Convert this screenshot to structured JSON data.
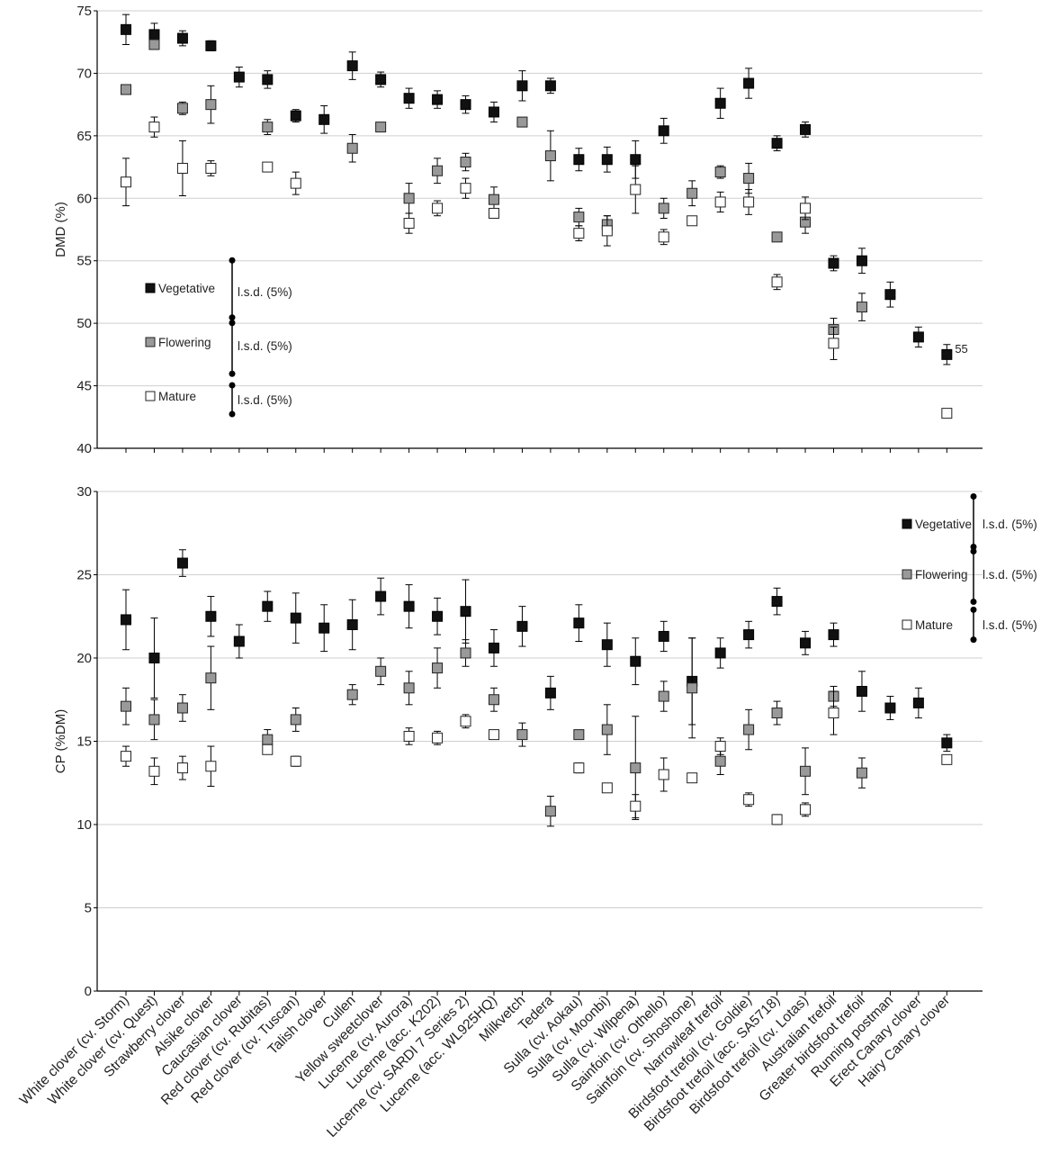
{
  "chart_data": {
    "type": "scatter",
    "categories": [
      "White clover (cv. Storm)",
      "White clover (cv. Quest)",
      "Strawberry clover",
      "Alsike clover",
      "Caucasian clover",
      "Red clover (cv. Rubitas)",
      "Red clover (cv. Tuscan)",
      "Talish clover",
      "Cullen",
      "Yellow sweetclover",
      "Lucerne (cv. Aurora)",
      "Lucerne (acc. K202)",
      "Lucerne (cv. SARDI 7 Series 2)",
      "Lucerne (acc. WL925HQ)",
      "Milkvetch",
      "Tedera",
      "Sulla (cv. Aokau)",
      "Sulla (cv. Moonbi)",
      "Sulla (cv. Wilpena)",
      "Sainfoin (cv. Othello)",
      "Sainfoin (cv. Shoshone)",
      "Narrowleaf trefoil",
      "Birdsfoot trefoil (cv. Goldie)",
      "Birdsfoot trefoil (acc. SA5718)",
      "Birdsfoot trefoil (cv. Lotas)",
      "Australian trefoil",
      "Greater birdsfoot trefoil",
      "Running postman",
      "Erect Canary clover",
      "Hairy Canary clover"
    ],
    "series_colors": {
      "Vegetative": "#111111",
      "Flowering": "#999999",
      "Mature": "#ffffff"
    },
    "panels": [
      {
        "ylabel": "DMD (%)",
        "ylim": [
          40,
          75
        ],
        "yticks": [
          "40",
          "45",
          "50",
          "55",
          "60",
          "65",
          "70",
          "75"
        ],
        "series": [
          {
            "name": "Vegetative",
            "lsd_label": "l.s.d. (5%)",
            "lsd": 5.0,
            "values": [
              73.5,
              73.1,
              72.8,
              72.2,
              69.7,
              69.5,
              66.6,
              66.3,
              70.6,
              69.5,
              68.0,
              67.9,
              67.5,
              66.9,
              69.0,
              69.0,
              63.1,
              63.1,
              63.1,
              65.4,
              null,
              67.6,
              69.2,
              64.4,
              65.5,
              54.8,
              55.0,
              52.3,
              48.9,
              47.5
            ],
            "errors": [
              1.2,
              0.9,
              0.6,
              0.4,
              0.8,
              0.7,
              0.5,
              1.1,
              1.1,
              0.6,
              0.8,
              0.7,
              0.7,
              0.8,
              1.2,
              0.6,
              0.9,
              1.0,
              1.5,
              1.0,
              null,
              1.2,
              1.2,
              0.6,
              0.6,
              0.6,
              1.0,
              1.0,
              0.8,
              0.8
            ]
          },
          {
            "name": "Flowering",
            "lsd_label": "l.s.d. (5%)",
            "lsd": 4.5,
            "values": [
              68.7,
              72.3,
              67.2,
              67.5,
              null,
              65.7,
              null,
              null,
              64.0,
              65.7,
              60.0,
              62.2,
              62.9,
              59.9,
              66.1,
              63.4,
              58.5,
              57.9,
              null,
              59.2,
              60.4,
              62.1,
              61.6,
              56.9,
              58.1,
              49.5,
              51.3,
              null,
              null,
              null
            ],
            "errors": [
              null,
              0.3,
              0.5,
              1.5,
              null,
              0.6,
              null,
              null,
              1.1,
              null,
              1.2,
              1.0,
              0.7,
              1.0,
              null,
              2.0,
              0.7,
              0.7,
              null,
              0.8,
              1.0,
              0.5,
              1.2,
              null,
              0.9,
              0.9,
              1.1,
              null,
              null,
              null
            ]
          },
          {
            "name": "Mature",
            "lsd_label": "l.s.d. (5%)",
            "lsd": 2.3,
            "values": [
              61.3,
              65.7,
              62.4,
              62.4,
              null,
              62.5,
              61.2,
              null,
              null,
              null,
              58.0,
              59.2,
              60.8,
              58.8,
              null,
              null,
              57.2,
              57.4,
              60.7,
              56.9,
              58.2,
              59.7,
              59.7,
              53.3,
              59.2,
              48.4,
              null,
              null,
              null,
              42.8
            ],
            "errors": [
              1.9,
              0.8,
              2.2,
              0.6,
              null,
              null,
              0.9,
              null,
              null,
              null,
              0.8,
              0.6,
              0.8,
              null,
              null,
              null,
              0.6,
              1.2,
              1.9,
              0.6,
              null,
              0.8,
              1.0,
              0.6,
              0.9,
              1.3,
              null,
              null,
              null,
              null
            ]
          }
        ],
        "annotations": [
          {
            "text": "55",
            "category": "Hairy Canary clover",
            "series": "Vegetative"
          }
        ]
      },
      {
        "ylabel": "CP (%DM)",
        "ylim": [
          0,
          30
        ],
        "yticks": [
          "0",
          "5",
          "10",
          "15",
          "20",
          "25",
          "30"
        ],
        "series": [
          {
            "name": "Vegetative",
            "lsd_label": "l.s.d. (5%)",
            "lsd": 3.3,
            "values": [
              22.3,
              20.0,
              25.7,
              22.5,
              21.0,
              23.1,
              22.4,
              21.8,
              22.0,
              23.7,
              23.1,
              22.5,
              22.8,
              20.6,
              21.9,
              17.9,
              22.1,
              20.8,
              19.8,
              21.3,
              18.6,
              20.3,
              21.4,
              23.4,
              20.9,
              21.4,
              18.0,
              17.0,
              17.3,
              14.9
            ],
            "errors": [
              1.8,
              2.4,
              0.8,
              1.2,
              1.0,
              0.9,
              1.5,
              1.4,
              1.5,
              1.1,
              1.3,
              1.1,
              1.9,
              1.1,
              1.2,
              1.0,
              1.1,
              1.3,
              1.4,
              0.9,
              2.6,
              0.9,
              0.8,
              0.8,
              0.7,
              0.7,
              1.2,
              0.7,
              0.9,
              0.5
            ]
          },
          {
            "name": "Flowering",
            "lsd_label": "l.s.d. (5%)",
            "lsd": 3.3,
            "values": [
              17.1,
              16.3,
              17.0,
              18.8,
              null,
              15.1,
              16.3,
              null,
              17.8,
              19.2,
              18.2,
              19.4,
              20.3,
              17.5,
              15.4,
              10.8,
              15.4,
              15.7,
              13.4,
              17.7,
              18.2,
              13.8,
              15.7,
              16.7,
              13.2,
              17.7,
              13.1,
              null,
              null,
              null
            ],
            "errors": [
              1.1,
              1.2,
              0.8,
              1.9,
              null,
              0.6,
              0.7,
              null,
              0.6,
              0.8,
              1.0,
              1.2,
              0.8,
              0.7,
              0.7,
              0.9,
              null,
              1.5,
              3.1,
              0.9,
              3.0,
              0.8,
              1.2,
              0.7,
              1.4,
              0.6,
              0.9,
              null,
              null,
              null
            ]
          },
          {
            "name": "Mature",
            "lsd_label": "l.s.d. (5%)",
            "lsd": 1.8,
            "values": [
              14.1,
              13.2,
              13.4,
              13.5,
              null,
              14.5,
              13.8,
              null,
              null,
              null,
              15.3,
              15.2,
              16.2,
              15.4,
              null,
              null,
              13.4,
              12.2,
              11.1,
              13.0,
              12.8,
              14.7,
              11.5,
              10.3,
              10.9,
              16.7,
              null,
              null,
              null,
              13.9
            ],
            "errors": [
              0.6,
              0.8,
              0.7,
              1.2,
              null,
              null,
              0.3,
              null,
              null,
              null,
              0.5,
              0.4,
              0.4,
              null,
              null,
              null,
              0.3,
              null,
              0.7,
              1.0,
              null,
              0.5,
              0.4,
              0.3,
              0.4,
              1.3,
              null,
              null,
              null,
              null
            ]
          }
        ]
      }
    ]
  }
}
